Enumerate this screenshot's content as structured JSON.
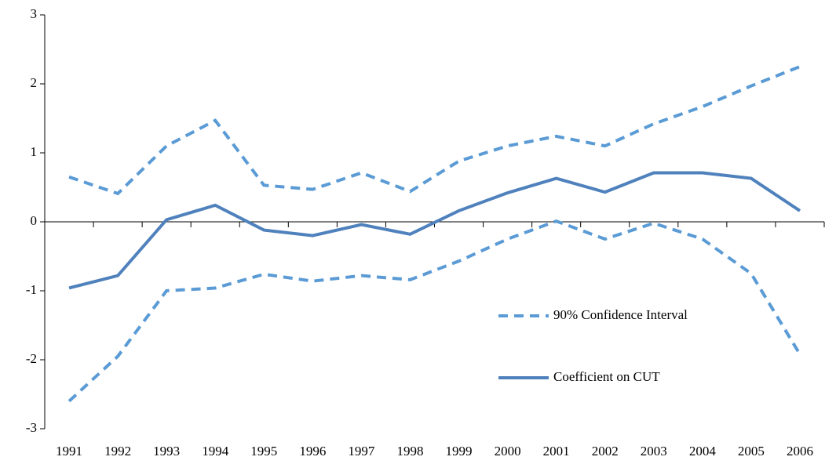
{
  "chart_data": {
    "type": "line",
    "categories": [
      "1991",
      "1992",
      "1993",
      "1994",
      "1995",
      "1996",
      "1997",
      "1998",
      "1999",
      "2000",
      "2001",
      "2002",
      "2003",
      "2004",
      "2005",
      "2006"
    ],
    "series": [
      {
        "name": "90% Confidence Interval",
        "color": "#5b9bd5",
        "style": "dashed",
        "upper": [
          0.65,
          0.41,
          1.1,
          1.47,
          0.53,
          0.47,
          0.71,
          0.44,
          0.88,
          1.1,
          1.24,
          1.1,
          1.42,
          1.67,
          1.97,
          2.25
        ],
        "lower": [
          -2.6,
          -1.95,
          -1.0,
          -0.96,
          -0.76,
          -0.86,
          -0.78,
          -0.84,
          -0.57,
          -0.25,
          0.01,
          -0.25,
          -0.02,
          -0.25,
          -0.75,
          -1.92
        ]
      },
      {
        "name": "Coefficient on CUT",
        "color": "#4f81bd",
        "style": "solid",
        "values": [
          -0.96,
          -0.78,
          0.03,
          0.24,
          -0.12,
          -0.2,
          -0.04,
          -0.18,
          0.16,
          0.42,
          0.63,
          0.43,
          0.71,
          0.71,
          0.63,
          0.16
        ]
      }
    ],
    "ylim": [
      -3,
      3
    ],
    "yticks": [
      -3,
      -2,
      -1,
      0,
      1,
      2,
      3
    ],
    "grid": false,
    "legend": "right"
  }
}
